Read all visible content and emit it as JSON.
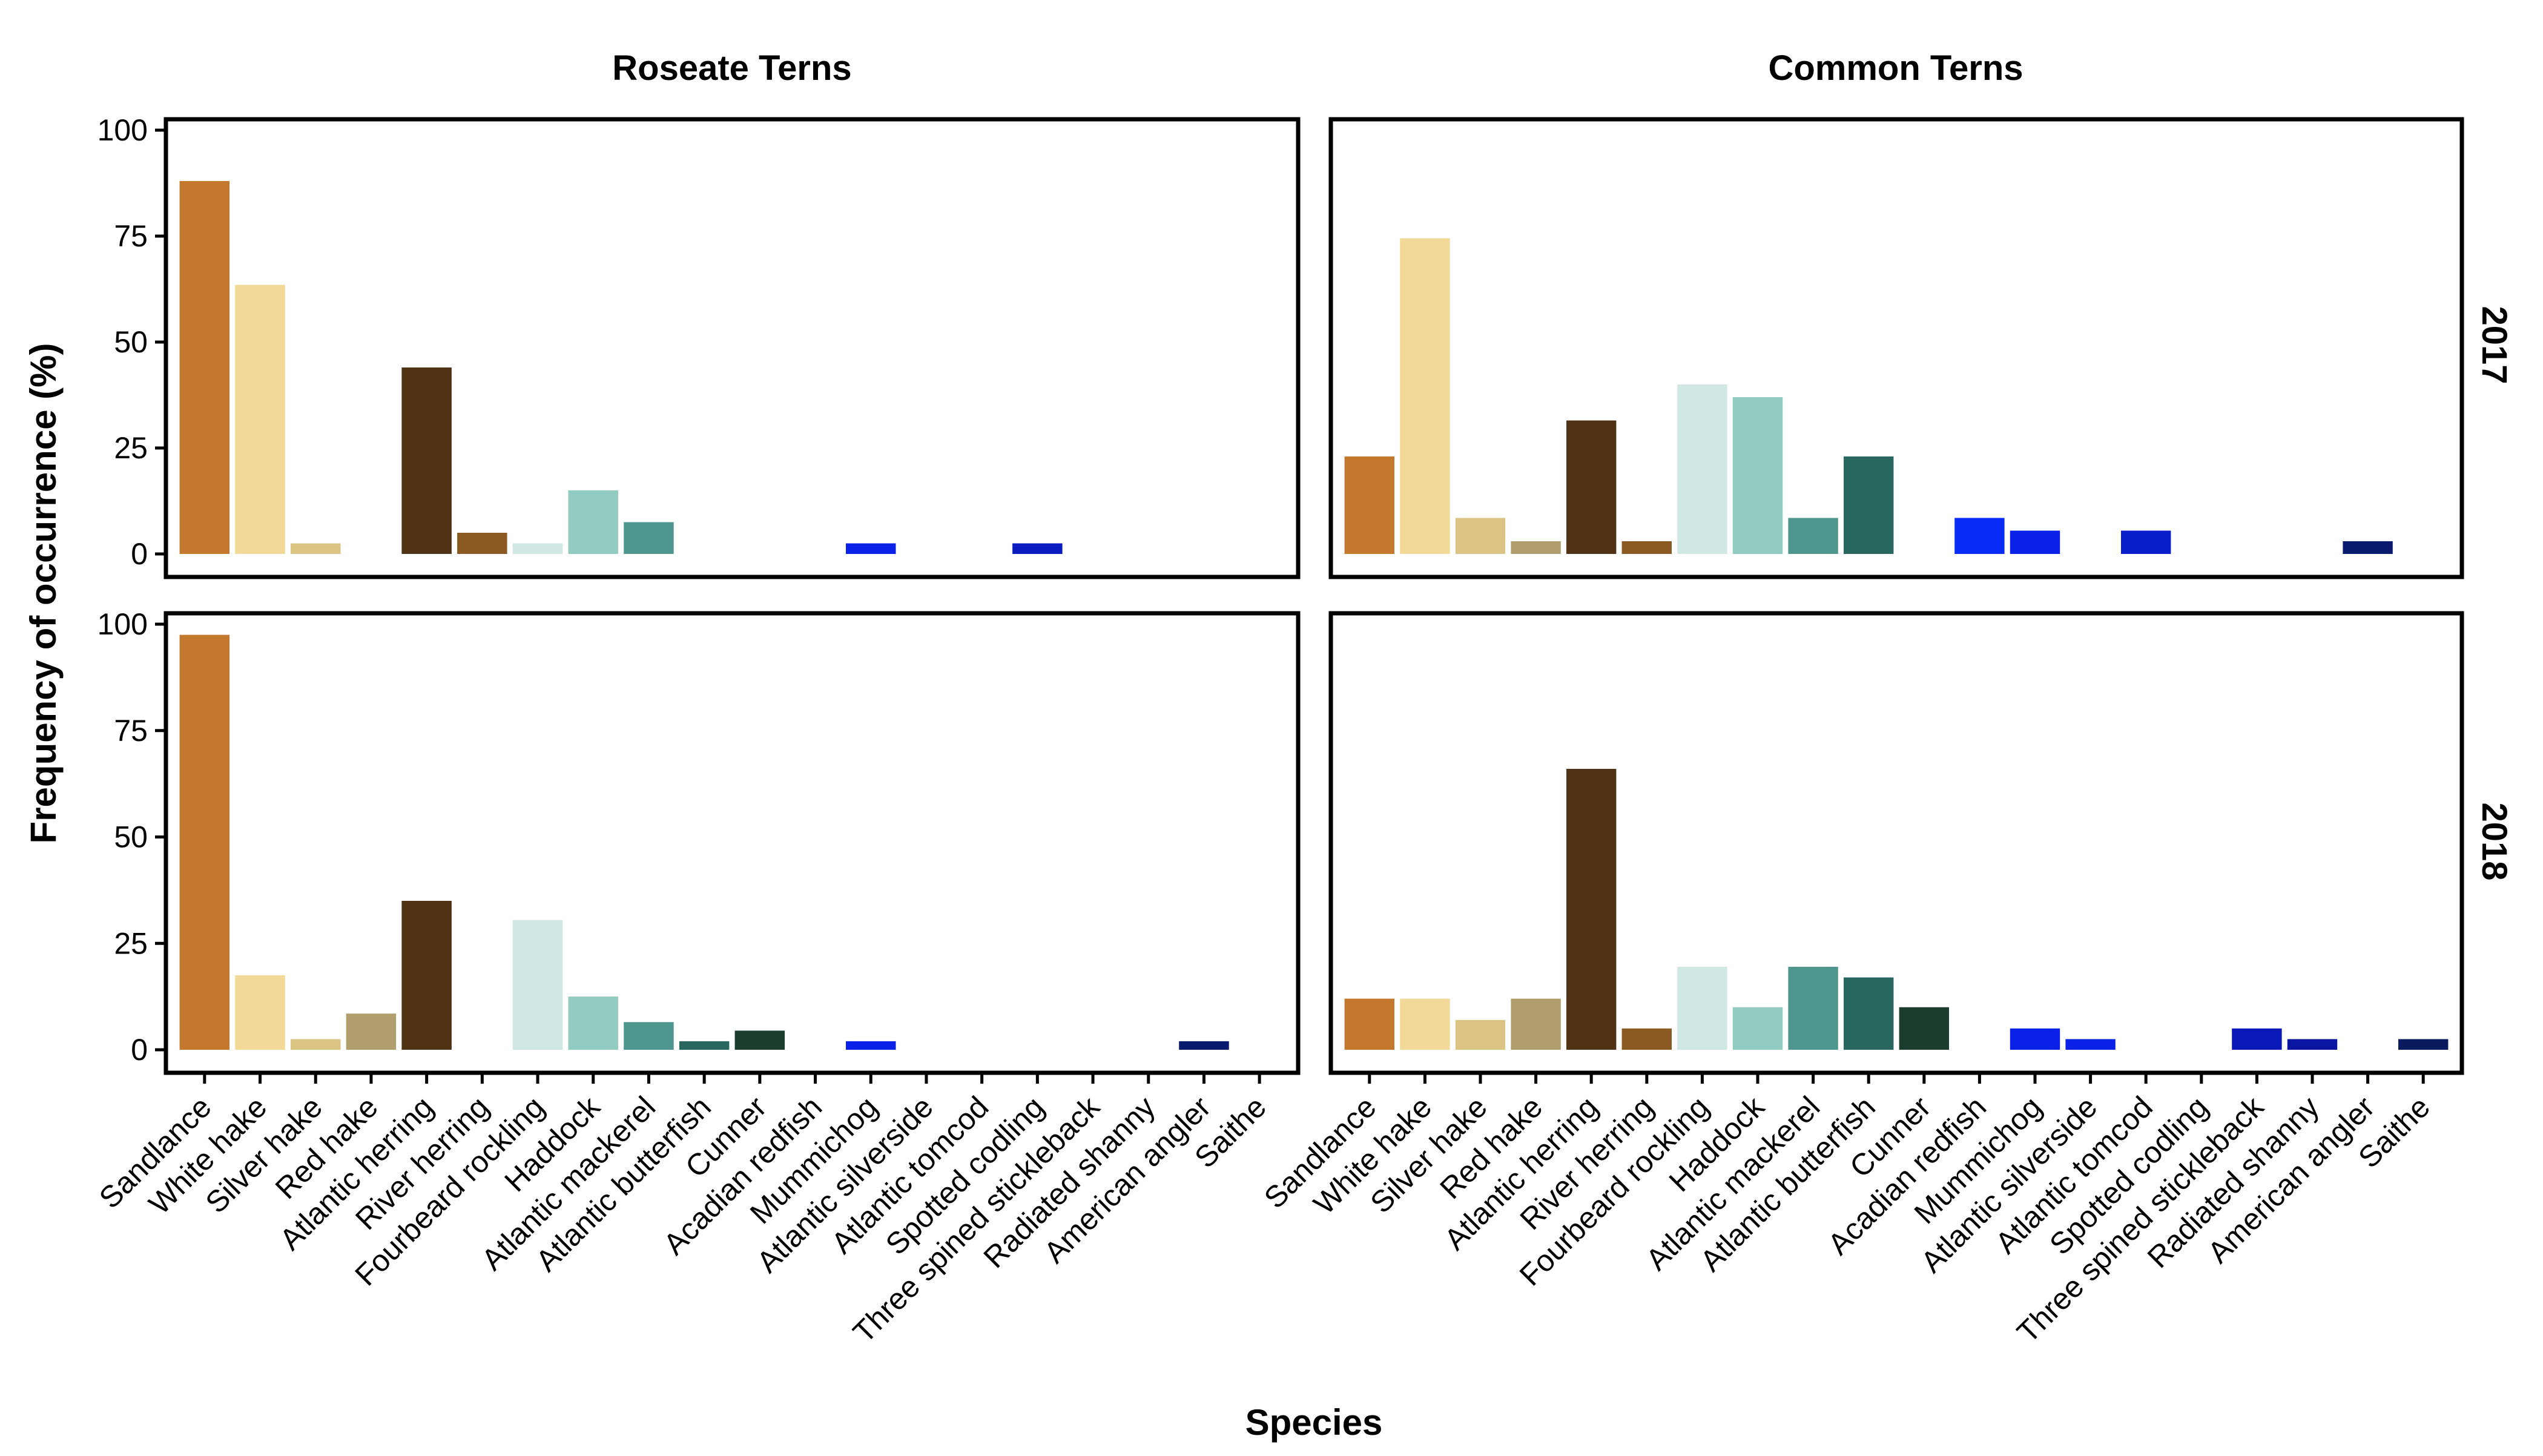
{
  "chart_data": {
    "type": "bar",
    "facet_columns": [
      "Roseate Terns",
      "Common Terns"
    ],
    "facet_rows": [
      "2017",
      "2018"
    ],
    "xlabel": "Species",
    "ylabel": "Frequency of occurrence (%)",
    "ylim": [
      0,
      100
    ],
    "yticks": [
      "0",
      "25",
      "50",
      "75",
      "100"
    ],
    "grid": false,
    "legend": "none",
    "categories": [
      "Sandlance",
      "White hake",
      "Silver hake",
      "Red hake",
      "Atlantic herring",
      "River herring",
      "Fourbeard rockling",
      "Haddock",
      "Atlantic mackerel",
      "Atlantic butterfish",
      "Cunner",
      "Acadian redfish",
      "Mummichog",
      "Atlantic silverside",
      "Atlantic tomcod",
      "Spotted codling",
      "Three spined stickleback",
      "Radiated shanny",
      "American angler",
      "Saithe"
    ],
    "colors": [
      "#C3782E",
      "#F3D998",
      "#DBC384",
      "#B19E6F",
      "#4F3314",
      "#8B5A22",
      "#CFE8E3",
      "#92CBBF",
      "#4F978E",
      "#28675F",
      "#1A3D2E",
      "#0A2BF5",
      "#0A22E8",
      "#0A22E8",
      "#0A1ECC",
      "#0A1CC0",
      "#0A18B8",
      "#0A16A0",
      "#0A1A6E",
      "#0A1A5E"
    ],
    "panels": [
      {
        "column": "Roseate Terns",
        "row": "2017",
        "values": [
          88,
          63.5,
          2.5,
          0,
          44,
          5,
          2.5,
          15,
          7.5,
          0,
          0,
          0,
          2.5,
          0,
          0,
          2.5,
          0,
          0,
          0,
          0
        ]
      },
      {
        "column": "Common Terns",
        "row": "2017",
        "values": [
          23,
          74.5,
          8.5,
          3,
          31.5,
          3,
          40,
          37,
          8.5,
          23,
          0,
          8.5,
          5.5,
          0,
          5.5,
          0,
          0,
          0,
          3,
          0
        ]
      },
      {
        "column": "Roseate Terns",
        "row": "2018",
        "values": [
          97.5,
          17.5,
          2.5,
          8.5,
          35,
          0,
          30.5,
          12.5,
          6.5,
          2,
          4.5,
          0,
          2,
          0,
          0,
          0,
          0,
          0,
          2,
          0
        ]
      },
      {
        "column": "Common Terns",
        "row": "2018",
        "values": [
          12,
          12,
          7,
          12,
          66,
          5,
          19.5,
          10,
          19.5,
          17,
          10,
          0,
          5,
          2.5,
          0,
          0,
          5,
          2.5,
          0,
          2.5
        ]
      }
    ]
  }
}
